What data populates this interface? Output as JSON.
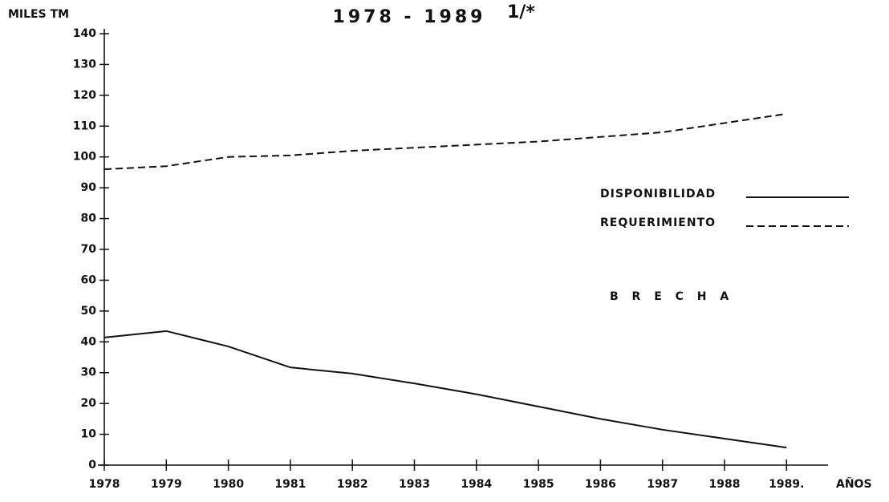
{
  "chart_data": {
    "type": "line",
    "subtitle": "1978 - 1989",
    "annotations": [
      "1/*",
      "B R E C H A"
    ],
    "y_label": "MILES TM",
    "x_label": "AÑOS",
    "categories": [
      "1978",
      "1979",
      "1980",
      "1981",
      "1982",
      "1983",
      "1984",
      "1985",
      "1986",
      "1987",
      "1988",
      "1989."
    ],
    "series": [
      {
        "name": "DISPONIBILIDAD",
        "color": "#111111",
        "dash": false,
        "values": [
          41.4,
          43.5,
          38.5,
          31.7,
          29.7,
          26.5,
          23,
          19,
          15,
          11.5,
          8.6,
          5.7
        ]
      },
      {
        "name": "REQUERIMIENTO",
        "color": "#111111",
        "dash": true,
        "values": [
          96,
          97,
          100,
          100.5,
          102,
          103,
          104,
          105,
          106.5,
          108,
          111,
          114
        ]
      }
    ],
    "ylim": [
      0,
      140
    ],
    "yticks": [
      0,
      10,
      20,
      30,
      40,
      50,
      60,
      70,
      80,
      90,
      100,
      110,
      120,
      130,
      140
    ],
    "grid": false
  }
}
